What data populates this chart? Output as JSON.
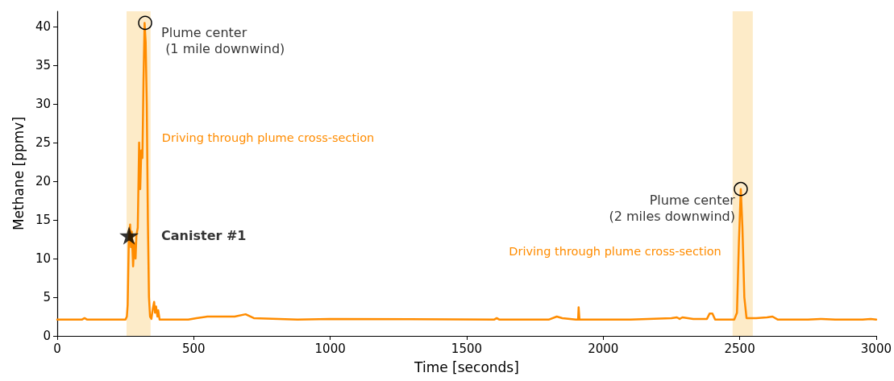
{
  "chart_data": {
    "type": "line",
    "xlabel": "Time [seconds]",
    "ylabel": "Methane [ppmv]",
    "xlim": [
      0,
      3000
    ],
    "xticks": [
      0,
      500,
      1000,
      1500,
      2000,
      2500,
      3000
    ],
    "ylim": [
      0,
      42
    ],
    "yticks": [
      0,
      5,
      10,
      15,
      20,
      25,
      30,
      35,
      40
    ],
    "grid": false,
    "marker": "none",
    "line_style": "solid",
    "series": [
      {
        "color": "#ff8c00",
        "x": [
          0,
          90,
          100,
          110,
          250,
          255,
          258,
          262,
          267,
          270,
          273,
          278,
          282,
          287,
          290,
          295,
          300,
          304,
          308,
          312,
          316,
          320,
          324,
          328,
          332,
          336,
          340,
          345,
          350,
          355,
          358,
          362,
          367,
          370,
          375,
          480,
          510,
          550,
          650,
          690,
          720,
          880,
          1000,
          1600,
          1610,
          1620,
          1800,
          1830,
          1850,
          1900,
          1908,
          1910,
          1913,
          2000,
          2100,
          2250,
          2270,
          2280,
          2290,
          2330,
          2380,
          2390,
          2400,
          2410,
          2480,
          2490,
          2497,
          2504,
          2510,
          2517,
          2525,
          2560,
          2600,
          2620,
          2640,
          2750,
          2800,
          2850,
          2950,
          2980,
          3000
        ],
        "values": [
          2.1,
          2.1,
          2.3,
          2.1,
          2.1,
          2.5,
          4,
          12,
          14.4,
          11.5,
          13.5,
          9,
          12,
          10,
          13,
          14,
          25,
          19,
          24,
          23,
          33,
          40.5,
          38,
          30,
          15,
          5,
          2.5,
          2.2,
          3.5,
          4.4,
          3,
          3.8,
          2.5,
          3.3,
          2.1,
          2.1,
          2.3,
          2.5,
          2.5,
          2.8,
          2.3,
          2.1,
          2.2,
          2.1,
          2.3,
          2.1,
          2.1,
          2.5,
          2.3,
          2.1,
          2.1,
          3.7,
          2.1,
          2.1,
          2.1,
          2.3,
          2.4,
          2.2,
          2.4,
          2.2,
          2.2,
          2.9,
          2.9,
          2.1,
          2.1,
          3,
          12,
          19,
          14,
          5,
          2.3,
          2.3,
          2.4,
          2.5,
          2.1,
          2.1,
          2.2,
          2.1,
          2.1,
          2.2,
          2.1
        ]
      },
      {
        "type": "scatter",
        "marker": "circle",
        "color": "#000000",
        "x": [
          322,
          2504
        ],
        "values": [
          40.5,
          19
        ]
      },
      {
        "type": "scatter",
        "marker": "star",
        "color": "#000000",
        "x": [
          263
        ],
        "values": [
          13
        ]
      }
    ],
    "bands": [
      {
        "axis": "x",
        "from": 254,
        "to": 342,
        "label": "Driving through plume cross-section",
        "color": "#fdebc8"
      },
      {
        "axis": "x",
        "from": 2474,
        "to": 2548,
        "label": "Driving through plume cross-section",
        "color": "#fdebc8"
      }
    ],
    "annotations": [
      {
        "text": "Plume center\n (1 mile downwind)",
        "x": 322,
        "y": 40.5
      },
      {
        "text": "Plume center\n (2 miles downwind)",
        "x": 2504,
        "y": 19
      },
      {
        "text": "Canister #1",
        "x": 263,
        "y": 13
      }
    ]
  }
}
